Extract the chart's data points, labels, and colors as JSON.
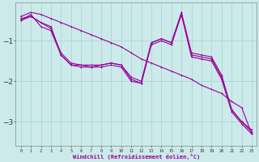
{
  "xlabel": "Windchill (Refroidissement éolien,°C)",
  "x": [
    0,
    1,
    2,
    3,
    4,
    5,
    6,
    7,
    8,
    9,
    10,
    11,
    12,
    13,
    14,
    15,
    16,
    17,
    18,
    19,
    20,
    21,
    22,
    23
  ],
  "series1": [
    -0.4,
    -0.3,
    -0.35,
    -0.45,
    -0.55,
    -0.65,
    -0.75,
    -0.85,
    -0.95,
    -1.05,
    -1.15,
    -1.3,
    -1.45,
    -1.55,
    -1.65,
    -1.75,
    -1.85,
    -1.95,
    -2.1,
    -2.2,
    -2.3,
    -2.5,
    -2.65,
    -3.3
  ],
  "series2": [
    -0.45,
    -0.4,
    -0.55,
    -0.7,
    -1.3,
    -1.55,
    -1.6,
    -1.6,
    -1.6,
    -1.55,
    -1.6,
    -1.9,
    -2.0,
    -1.05,
    -0.95,
    -1.05,
    -0.3,
    -1.3,
    -1.35,
    -1.4,
    -1.85,
    -2.7,
    -3.0,
    -3.2
  ],
  "series3": [
    -0.5,
    -0.35,
    -0.65,
    -0.75,
    -1.35,
    -1.6,
    -1.65,
    -1.65,
    -1.65,
    -1.6,
    -1.65,
    -2.0,
    -2.05,
    -1.1,
    -1.0,
    -1.1,
    -0.35,
    -1.4,
    -1.45,
    -1.5,
    -1.95,
    -2.75,
    -3.05,
    -3.3
  ],
  "series4": [
    -0.5,
    -0.4,
    -0.55,
    -0.65,
    -1.35,
    -1.6,
    -1.6,
    -1.65,
    -1.6,
    -1.55,
    -1.6,
    -1.95,
    -2.05,
    -1.05,
    -0.95,
    -1.05,
    -0.35,
    -1.35,
    -1.4,
    -1.45,
    -1.9,
    -2.7,
    -3.0,
    -3.25
  ],
  "color": "#990099",
  "bg_color": "#cceaea",
  "grid_color": "#aad8d8",
  "ylim": [
    -3.6,
    -0.05
  ],
  "yticks": [
    -3,
    -2,
    -1
  ],
  "xlim": [
    -0.5,
    23.5
  ]
}
